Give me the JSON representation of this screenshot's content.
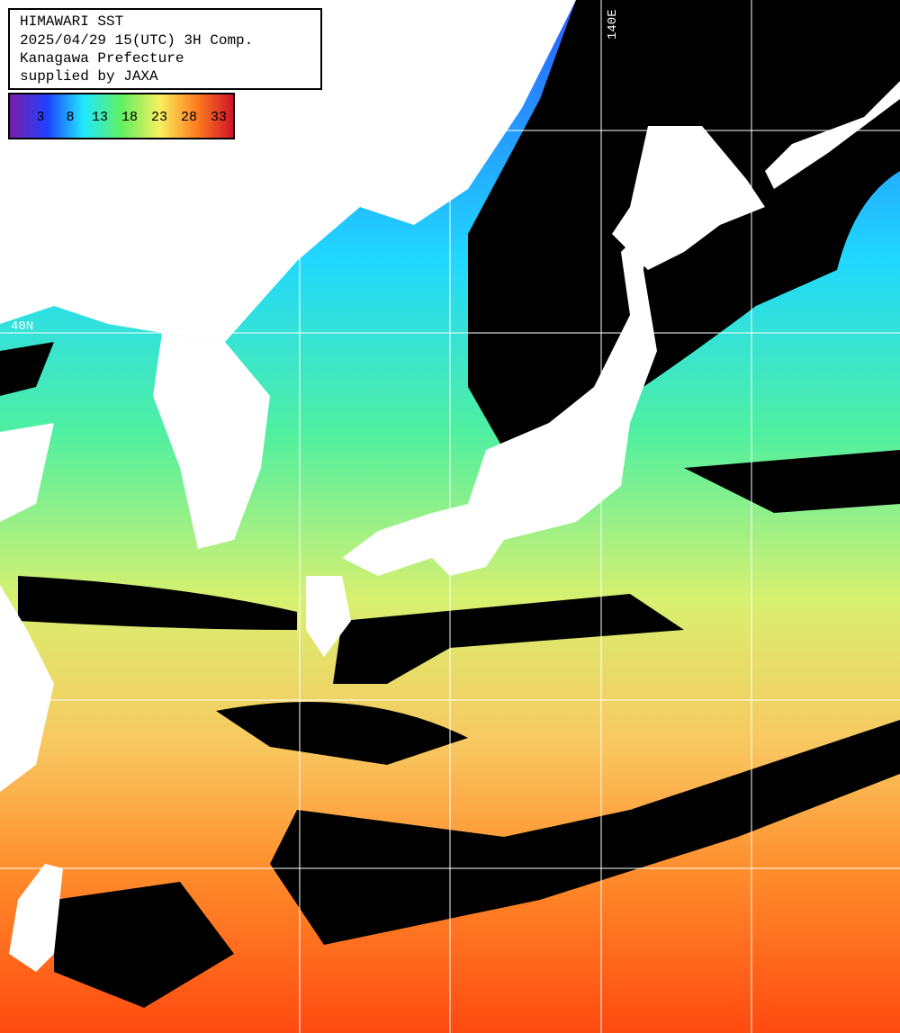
{
  "header": {
    "lines": [
      "HIMAWARI SST",
      "2025/04/29 15(UTC) 3H Comp.",
      "Kanagawa Prefecture",
      "supplied by JAXA"
    ]
  },
  "colorbar": {
    "labels": [
      "3",
      "8",
      "13",
      "18",
      "23",
      "28",
      "33"
    ]
  },
  "grid_labels": {
    "lon": [
      "140E"
    ],
    "lat": [
      "40N"
    ]
  }
}
